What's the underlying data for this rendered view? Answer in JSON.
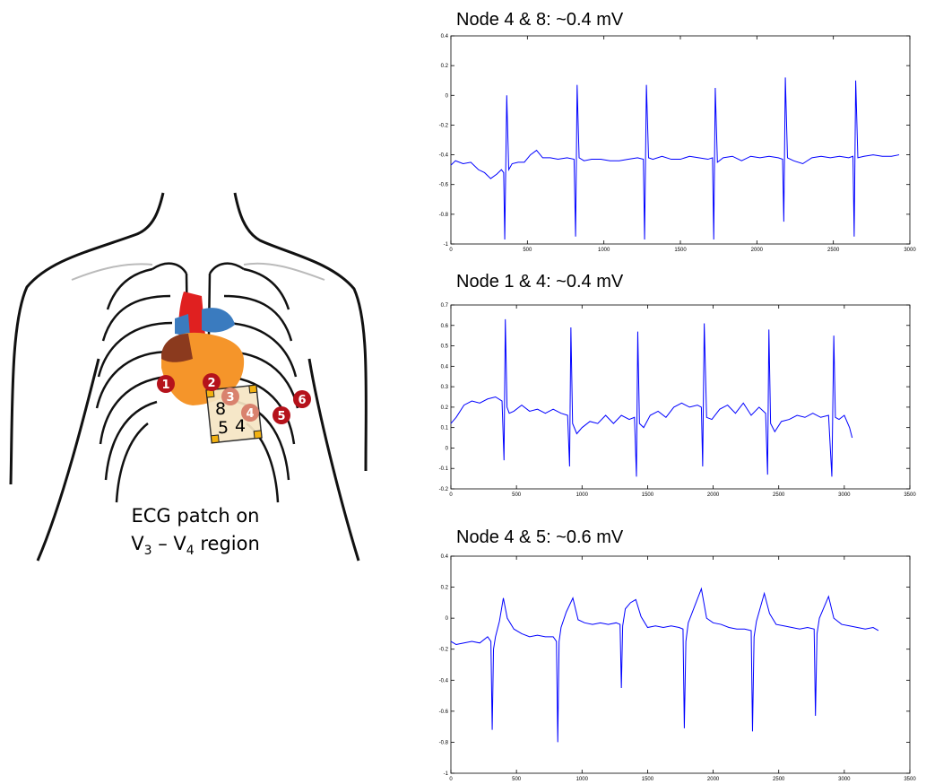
{
  "illustration": {
    "electrodes": [
      "1",
      "2",
      "3",
      "4",
      "5",
      "6"
    ],
    "patch_labels": [
      "8",
      "5",
      "4"
    ],
    "caption": {
      "line1": "ECG patch on",
      "line2": [
        "V",
        "3",
        " – V",
        "4",
        " region"
      ]
    }
  },
  "chart_data": [
    {
      "type": "line",
      "title": "Node 4 & 8: ~0.4 mV",
      "color": "#0000ff",
      "xlim": [
        0,
        3000
      ],
      "xticks": [
        0,
        500,
        1000,
        1500,
        2000,
        2500,
        3000
      ],
      "ylim": [
        -1,
        0.4
      ],
      "yticks": [
        -1,
        -0.8,
        -0.6,
        -0.4,
        -0.2,
        0,
        0.2,
        0.4
      ],
      "x": [
        0,
        30,
        80,
        130,
        180,
        220,
        260,
        300,
        330,
        345,
        352,
        365,
        378,
        400,
        440,
        480,
        520,
        560,
        600,
        650,
        700,
        760,
        805,
        815,
        825,
        838,
        870,
        920,
        980,
        1040,
        1100,
        1160,
        1220,
        1258,
        1266,
        1278,
        1292,
        1320,
        1380,
        1440,
        1500,
        1560,
        1620,
        1680,
        1710,
        1718,
        1728,
        1742,
        1780,
        1840,
        1900,
        1960,
        2020,
        2080,
        2140,
        2168,
        2176,
        2186,
        2200,
        2240,
        2300,
        2360,
        2420,
        2480,
        2540,
        2600,
        2628,
        2636,
        2646,
        2660,
        2700,
        2760,
        2820,
        2880,
        2930
      ],
      "values": [
        -0.47,
        -0.44,
        -0.46,
        -0.45,
        -0.5,
        -0.52,
        -0.56,
        -0.53,
        -0.5,
        -0.52,
        -0.97,
        0.0,
        -0.5,
        -0.46,
        -0.45,
        -0.45,
        -0.4,
        -0.37,
        -0.42,
        -0.42,
        -0.43,
        -0.42,
        -0.43,
        -0.95,
        0.07,
        -0.42,
        -0.44,
        -0.43,
        -0.43,
        -0.44,
        -0.44,
        -0.43,
        -0.42,
        -0.43,
        -0.97,
        0.07,
        -0.42,
        -0.43,
        -0.41,
        -0.43,
        -0.43,
        -0.41,
        -0.42,
        -0.43,
        -0.42,
        -0.97,
        0.05,
        -0.45,
        -0.42,
        -0.41,
        -0.44,
        -0.41,
        -0.42,
        -0.41,
        -0.42,
        -0.43,
        -0.85,
        0.12,
        -0.42,
        -0.44,
        -0.46,
        -0.42,
        -0.41,
        -0.42,
        -0.41,
        -0.42,
        -0.41,
        -0.95,
        0.1,
        -0.42,
        -0.41,
        -0.4,
        -0.41,
        -0.41,
        -0.4
      ]
    },
    {
      "type": "line",
      "title": "Node 1 & 4:  ~0.4 mV",
      "color": "#0000ff",
      "xlim": [
        0,
        3500
      ],
      "xticks": [
        0,
        500,
        1000,
        1500,
        2000,
        2500,
        3000,
        3500
      ],
      "ylim": [
        -0.2,
        0.7
      ],
      "yticks": [
        -0.2,
        -0.1,
        0,
        0.1,
        0.2,
        0.3,
        0.4,
        0.5,
        0.6,
        0.7
      ],
      "x": [
        0,
        40,
        100,
        160,
        220,
        280,
        340,
        390,
        405,
        415,
        428,
        445,
        480,
        540,
        600,
        660,
        720,
        780,
        840,
        890,
        905,
        915,
        928,
        960,
        1000,
        1060,
        1120,
        1180,
        1240,
        1300,
        1360,
        1400,
        1415,
        1425,
        1438,
        1470,
        1520,
        1580,
        1640,
        1700,
        1760,
        1820,
        1880,
        1910,
        1920,
        1932,
        1950,
        1990,
        2050,
        2110,
        2170,
        2230,
        2290,
        2350,
        2400,
        2415,
        2425,
        2438,
        2470,
        2520,
        2580,
        2640,
        2700,
        2760,
        2820,
        2880,
        2905,
        2920,
        2932,
        2960,
        3000,
        3040,
        3060
      ],
      "values": [
        0.12,
        0.15,
        0.21,
        0.23,
        0.22,
        0.24,
        0.25,
        0.23,
        -0.06,
        0.63,
        0.2,
        0.17,
        0.18,
        0.21,
        0.18,
        0.19,
        0.17,
        0.19,
        0.17,
        0.16,
        -0.09,
        0.59,
        0.12,
        0.07,
        0.1,
        0.13,
        0.12,
        0.16,
        0.12,
        0.16,
        0.14,
        0.15,
        -0.14,
        0.57,
        0.12,
        0.1,
        0.16,
        0.18,
        0.15,
        0.2,
        0.22,
        0.2,
        0.21,
        0.2,
        -0.09,
        0.61,
        0.15,
        0.14,
        0.19,
        0.21,
        0.17,
        0.22,
        0.16,
        0.2,
        0.17,
        -0.13,
        0.58,
        0.12,
        0.08,
        0.13,
        0.14,
        0.16,
        0.15,
        0.17,
        0.15,
        0.16,
        -0.14,
        0.55,
        0.15,
        0.14,
        0.16,
        0.1,
        0.05
      ]
    },
    {
      "type": "line",
      "title": "Node 4 & 5: ~0.6 mV",
      "color": "#0000ff",
      "xlim": [
        0,
        3500
      ],
      "xticks": [
        0,
        500,
        1000,
        1500,
        2000,
        2500,
        3000,
        3500
      ],
      "ylim": [
        -1,
        0.4
      ],
      "yticks": [
        -1,
        -0.8,
        -0.6,
        -0.4,
        -0.2,
        0,
        0.2,
        0.4
      ],
      "x": [
        0,
        40,
        100,
        160,
        220,
        280,
        305,
        315,
        325,
        340,
        370,
        400,
        430,
        480,
        540,
        600,
        660,
        720,
        780,
        805,
        815,
        825,
        840,
        880,
        930,
        970,
        1020,
        1080,
        1140,
        1200,
        1260,
        1290,
        1300,
        1310,
        1330,
        1370,
        1410,
        1450,
        1500,
        1560,
        1620,
        1680,
        1740,
        1770,
        1780,
        1792,
        1810,
        1860,
        1910,
        1950,
        2000,
        2060,
        2120,
        2180,
        2240,
        2290,
        2300,
        2312,
        2330,
        2370,
        2390,
        2430,
        2480,
        2540,
        2600,
        2660,
        2720,
        2770,
        2780,
        2792,
        2810,
        2850,
        2880,
        2920,
        2980,
        3040,
        3100,
        3160,
        3220,
        3260
      ],
      "values": [
        -0.15,
        -0.17,
        -0.16,
        -0.15,
        -0.16,
        -0.12,
        -0.15,
        -0.72,
        -0.2,
        -0.12,
        -0.02,
        0.13,
        0.0,
        -0.07,
        -0.1,
        -0.12,
        -0.11,
        -0.12,
        -0.12,
        -0.15,
        -0.8,
        -0.15,
        -0.06,
        0.04,
        0.13,
        -0.01,
        -0.03,
        -0.04,
        -0.03,
        -0.04,
        -0.03,
        -0.04,
        -0.45,
        -0.05,
        0.06,
        0.1,
        0.12,
        0.01,
        -0.06,
        -0.05,
        -0.06,
        -0.05,
        -0.06,
        -0.07,
        -0.71,
        -0.15,
        -0.03,
        0.08,
        0.19,
        0.0,
        -0.03,
        -0.04,
        -0.06,
        -0.07,
        -0.07,
        -0.08,
        -0.73,
        -0.12,
        -0.02,
        0.1,
        0.16,
        0.03,
        -0.04,
        -0.05,
        -0.06,
        -0.07,
        -0.06,
        -0.07,
        -0.63,
        -0.1,
        0.0,
        0.08,
        0.14,
        0.0,
        -0.04,
        -0.05,
        -0.06,
        -0.07,
        -0.06,
        -0.08
      ]
    }
  ]
}
